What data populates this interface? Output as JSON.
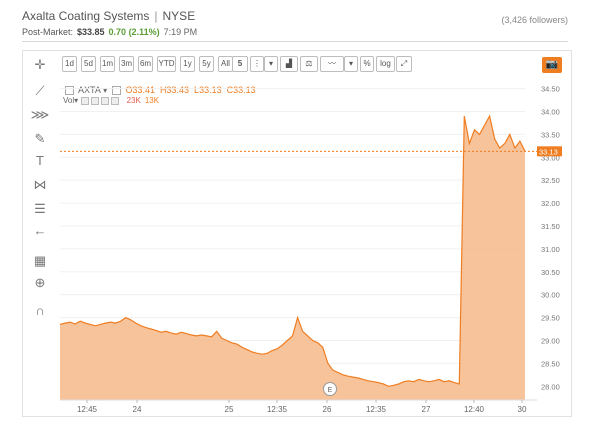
{
  "header": {
    "company": "Axalta Coating Systems",
    "exchange": "NYSE",
    "followers": "(3,426 followers)",
    "post_market_label": "Post-Market:",
    "post_market_price": "$33.85",
    "post_market_change": "0.70 (2.11%)",
    "post_market_time": "7:19 PM"
  },
  "toolbar": {
    "ranges": [
      "1d",
      "5d",
      "1m",
      "3m",
      "6m",
      "YTD",
      "1y",
      "5y",
      "All"
    ],
    "interval": "5",
    "percent_label": "%",
    "log_label": "log"
  },
  "legend": {
    "symbol": "AXTA",
    "open_label": "O",
    "open": "33.41",
    "high_label": "H",
    "high": "33.43",
    "low_label": "L",
    "low": "33.13",
    "close_label": "C",
    "close": "33.13",
    "vol_label": "Vol",
    "vol_a": "23K",
    "vol_b": "13K"
  },
  "left_tools": [
    {
      "name": "crosshair-icon",
      "glyph": "✛"
    },
    {
      "name": "trend-line-icon",
      "glyph": "⟋"
    },
    {
      "name": "pitchfork-icon",
      "glyph": "⋙"
    },
    {
      "name": "brush-icon",
      "glyph": "✎"
    },
    {
      "name": "text-tool-icon",
      "glyph": "T"
    },
    {
      "name": "pattern-icon",
      "glyph": "⋈"
    },
    {
      "name": "fib-icon",
      "glyph": "☰"
    },
    {
      "name": "arrow-left-icon",
      "glyph": "←"
    },
    {
      "name": "indicators-icon",
      "glyph": "▦"
    },
    {
      "name": "zoom-icon",
      "glyph": "⊕"
    },
    {
      "name": "magnet-icon",
      "glyph": "∩"
    }
  ],
  "colors": {
    "accent": "#ef7d21",
    "area": "#f6b98a",
    "positive": "#5a9e35"
  },
  "chart_data": {
    "type": "area",
    "x_tick_labels": [
      "12:45",
      "24",
      "25",
      "12:35",
      "26",
      "12:35",
      "27",
      "12:40",
      "30"
    ],
    "y_ticks": [
      "34.50",
      "34.00",
      "33.50",
      "33.00",
      "32.50",
      "32.00",
      "31.50",
      "31.00",
      "30.50",
      "30.00",
      "29.50",
      "29.00",
      "28.50",
      "28.00"
    ],
    "ylim": [
      27.7,
      34.6
    ],
    "current_price_label": "33.13",
    "current_price": 33.13,
    "event_marker": "E",
    "series": [
      {
        "values": [
          29.35,
          29.38,
          29.4,
          29.36,
          29.42,
          29.38,
          29.35,
          29.32,
          29.35,
          29.38,
          29.4,
          29.38,
          29.42,
          29.5,
          29.45,
          29.38,
          29.32,
          29.28,
          29.25,
          29.22,
          29.18,
          29.2,
          29.16,
          29.14,
          29.18,
          29.15,
          29.12,
          29.1,
          29.12,
          29.1,
          29.08,
          29.2,
          29.05,
          29.0,
          28.95,
          28.92,
          28.85,
          28.8,
          28.75,
          28.72,
          28.7,
          28.72,
          28.78,
          28.82,
          28.9,
          29.0,
          29.1,
          29.5,
          29.2,
          29.1,
          29.0,
          28.95,
          28.85,
          28.5,
          28.35,
          28.3,
          28.25,
          28.22,
          28.2,
          28.18,
          28.15,
          28.12,
          28.1,
          28.08,
          28.05,
          28.0,
          28.02,
          28.05,
          28.1,
          28.12,
          28.1,
          28.15,
          28.12,
          28.1,
          28.12,
          28.15,
          28.1,
          28.12,
          28.08,
          28.05,
          33.9,
          33.3,
          33.6,
          33.5,
          33.7,
          33.9,
          33.4,
          33.2,
          33.3,
          33.5,
          33.2,
          33.35,
          33.13
        ]
      }
    ]
  }
}
